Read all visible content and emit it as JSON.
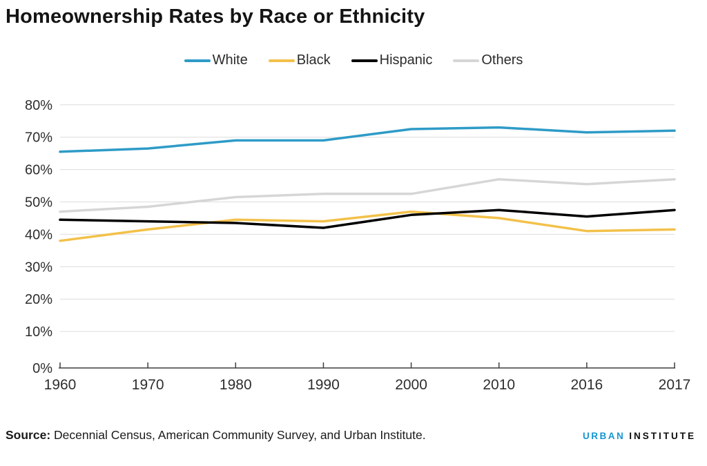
{
  "title": "Homeownership Rates by Race or Ethnicity",
  "source": {
    "label": "Source:",
    "text": " Decennial Census, American Community Survey, and Urban Institute."
  },
  "logo": {
    "part1": "URBAN",
    "part2": "INSTITUTE",
    "accent_color": "#1696d2"
  },
  "chart_data": {
    "type": "line",
    "categories": [
      "1960",
      "1970",
      "1980",
      "1990",
      "2000",
      "2010",
      "2016",
      "2017"
    ],
    "series": [
      {
        "name": "White",
        "color": "#2e9bc7",
        "values": [
          65.5,
          66.5,
          69.0,
          69.0,
          72.5,
          73.0,
          71.5,
          72.0
        ]
      },
      {
        "name": "Black",
        "color": "#f3c14a",
        "values": [
          38.0,
          41.5,
          44.5,
          44.0,
          47.0,
          45.0,
          41.0,
          41.5
        ]
      },
      {
        "name": "Hispanic",
        "color": "#000000",
        "values": [
          44.5,
          44.0,
          43.5,
          42.0,
          46.0,
          47.5,
          45.5,
          47.5
        ]
      },
      {
        "name": "Others",
        "color": "#d6d6d6",
        "values": [
          47.0,
          48.5,
          51.5,
          52.5,
          52.5,
          57.0,
          55.5,
          57.0
        ]
      }
    ],
    "title": "Homeownership Rates by Race or Ethnicity",
    "xlabel": "",
    "ylabel": "",
    "ylim": [
      0,
      80
    ],
    "yticks": [
      "0%",
      "10%",
      "20%",
      "30%",
      "40%",
      "50%",
      "60%",
      "70%",
      "80%"
    ],
    "grid": true,
    "legend_position": "top",
    "gridline_color": "#dcdcdc",
    "axis_color": "#3f3f3f",
    "tick_label_color": "#2e2e2e"
  }
}
